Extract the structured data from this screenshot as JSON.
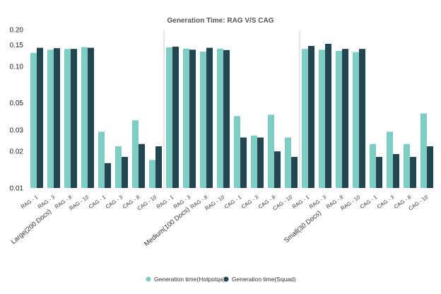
{
  "chart_data": {
    "type": "bar",
    "title": "Generation Time: RAG V/S CAG",
    "xlabel": "",
    "ylabel": "",
    "y_scale": "log",
    "ylim": [
      0.01,
      0.2
    ],
    "y_ticks": [
      0.01,
      0.02,
      0.03,
      0.05,
      0.1,
      0.15,
      0.2
    ],
    "y_tick_labels": [
      "0.01",
      "0.02",
      "0.03",
      "0.05",
      "0.10",
      "0.15",
      "0.20"
    ],
    "groups": [
      "Large(200 Docs)",
      "Medium(100 Docs)",
      "Small(30 Docs)"
    ],
    "categories": [
      "RAG - 1",
      "RAG - 3",
      "RAG - 8",
      "RAG - 10",
      "CAG - 1",
      "CAG - 3",
      "CAG - 8",
      "CAG - 10"
    ],
    "series": [
      {
        "name": "Generation time(Hotpotqa)",
        "color": "#7ecdc4",
        "values": [
          [
            0.129,
            0.137,
            0.139,
            0.144,
            0.029,
            0.022,
            0.036,
            0.017
          ],
          [
            0.143,
            0.14,
            0.132,
            0.14,
            0.039,
            0.027,
            0.04,
            0.026
          ],
          [
            0.139,
            0.137,
            0.134,
            0.131,
            0.023,
            0.029,
            0.023,
            0.041
          ]
        ]
      },
      {
        "name": "Generation time(Squad)",
        "color": "#23454f",
        "values": [
          [
            0.142,
            0.141,
            0.139,
            0.142,
            0.016,
            0.018,
            0.023,
            0.022
          ],
          [
            0.145,
            0.137,
            0.142,
            0.136,
            0.026,
            0.026,
            0.02,
            0.018
          ],
          [
            0.147,
            0.153,
            0.139,
            0.139,
            0.018,
            0.019,
            0.018,
            0.022
          ]
        ]
      }
    ],
    "grid": false,
    "legend_position": "bottom"
  }
}
